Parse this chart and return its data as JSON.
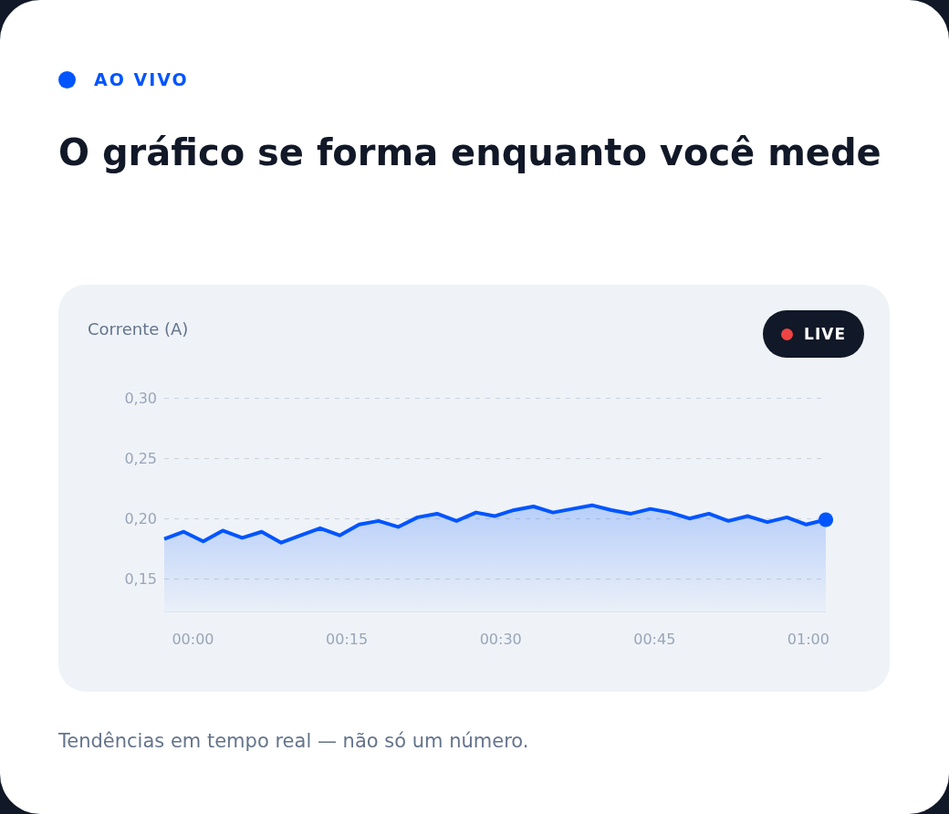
{
  "chart_data": {
    "type": "area",
    "title": "O gráfico se forma enquanto você mede",
    "ylabel": "Corrente (A)",
    "annotations": [
      "AO VIVO",
      "LIVE",
      "Tendências em tempo real — não só um número."
    ],
    "x": [
      -2.8,
      -0.9,
      1.0,
      2.9,
      4.8,
      6.7,
      8.6,
      10.5,
      12.4,
      14.3,
      16.2,
      18.1,
      20.0,
      21.9,
      23.8,
      25.7,
      27.6,
      29.4,
      31.3,
      33.2,
      35.1,
      37.0,
      38.9,
      40.8,
      42.7,
      44.6,
      46.5,
      48.4,
      50.3,
      52.2,
      54.1,
      56.0,
      57.9,
      59.8,
      61.7
    ],
    "series": [
      {
        "color": "#0055ff",
        "values": [
          0.183,
          0.189,
          0.181,
          0.19,
          0.184,
          0.189,
          0.18,
          0.186,
          0.192,
          0.186,
          0.195,
          0.198,
          0.193,
          0.201,
          0.204,
          0.198,
          0.205,
          0.202,
          0.207,
          0.21,
          0.205,
          0.208,
          0.211,
          0.207,
          0.204,
          0.208,
          0.205,
          0.2,
          0.204,
          0.198,
          0.202,
          0.197,
          0.201,
          0.195,
          0.199
        ]
      }
    ],
    "xlim": [
      -2.8,
      61.7
    ],
    "xticks": [
      {
        "value": 0,
        "label": "00:00"
      },
      {
        "value": 15,
        "label": "00:15"
      },
      {
        "value": 30,
        "label": "00:30"
      },
      {
        "value": 45,
        "label": "00:45"
      },
      {
        "value": 60,
        "label": "01:00"
      }
    ],
    "ylim": [
      0.123,
      0.3
    ],
    "yticks": [
      {
        "value": 0.15,
        "label": "0,15"
      },
      {
        "value": 0.2,
        "label": "0,20"
      },
      {
        "value": 0.25,
        "label": "0,25"
      },
      {
        "value": 0.3,
        "label": "0,30"
      }
    ],
    "grid": "y"
  }
}
